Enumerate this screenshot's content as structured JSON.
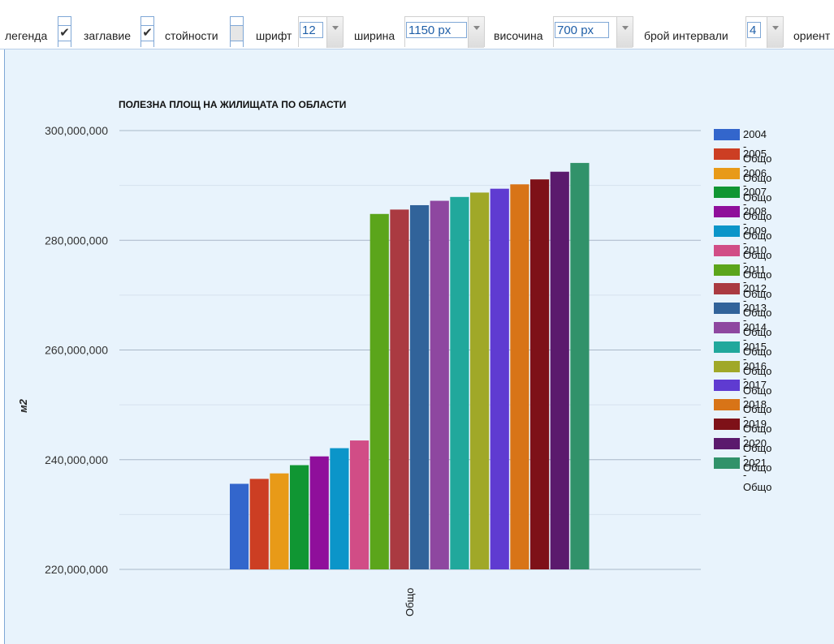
{
  "toolbar": {
    "legend_label": "легенда",
    "legend_checked": true,
    "title_label": "заглавие",
    "title_checked": true,
    "values_label": "стойности",
    "values_checked": false,
    "font_label": "шрифт",
    "font_value": "12",
    "width_label": "ширина",
    "width_value": "1150 px",
    "height_label": "височина",
    "height_value": "700 px",
    "intervals_label": "брой интервали",
    "intervals_value": "4",
    "orientation_label": "ориент"
  },
  "chart_data": {
    "type": "bar",
    "title": "ПОЛЕЗНА ПЛОЩ НА ЖИЛИЩАТА ПО ОБЛАСТИ",
    "ylabel": "м2",
    "xlabel": "",
    "categories": [
      "Общо"
    ],
    "ylim": [
      220000000,
      300000000
    ],
    "yticks": [
      220000000,
      240000000,
      260000000,
      280000000,
      300000000
    ],
    "ytick_labels": [
      "220,000,000",
      "240,000,000",
      "260,000,000",
      "280,000,000",
      "300,000,000"
    ],
    "grid": true,
    "legend_position": "right",
    "series": [
      {
        "name": "2004 - Общо",
        "color": "#3366cc",
        "values": [
          235600000
        ]
      },
      {
        "name": "2005 - Общо",
        "color": "#cc3e23",
        "values": [
          236500000
        ]
      },
      {
        "name": "2006 - Общо",
        "color": "#e89a18",
        "values": [
          237500000
        ]
      },
      {
        "name": "2007 - Общо",
        "color": "#109633",
        "values": [
          239000000
        ]
      },
      {
        "name": "2008 - Общо",
        "color": "#8f0f9b",
        "values": [
          240600000
        ]
      },
      {
        "name": "2009 - Общо",
        "color": "#0b95c9",
        "values": [
          242100000
        ]
      },
      {
        "name": "2010 - Общо",
        "color": "#d14d86",
        "values": [
          243500000
        ]
      },
      {
        "name": "2011 - Общо",
        "color": "#5ba51b",
        "values": [
          284800000
        ]
      },
      {
        "name": "2012 - Общо",
        "color": "#aa3a41",
        "values": [
          285600000
        ]
      },
      {
        "name": "2013 - Общо",
        "color": "#31639a",
        "values": [
          286400000
        ]
      },
      {
        "name": "2014 - Общо",
        "color": "#8e47a0",
        "values": [
          287200000
        ]
      },
      {
        "name": "2015 - Общо",
        "color": "#21a89c",
        "values": [
          287900000
        ]
      },
      {
        "name": "2016 - Общо",
        "color": "#a0a828",
        "values": [
          288700000
        ]
      },
      {
        "name": "2017 - Общо",
        "color": "#5f3bd1",
        "values": [
          289400000
        ]
      },
      {
        "name": "2018 - Общо",
        "color": "#d87417",
        "values": [
          290200000
        ]
      },
      {
        "name": "2019 - Общо",
        "color": "#7e1118",
        "values": [
          291100000
        ]
      },
      {
        "name": "2020 - Общо",
        "color": "#5b1a6d",
        "values": [
          292500000
        ]
      },
      {
        "name": "2021 - Общо",
        "color": "#31926a",
        "values": [
          294100000
        ]
      }
    ]
  }
}
